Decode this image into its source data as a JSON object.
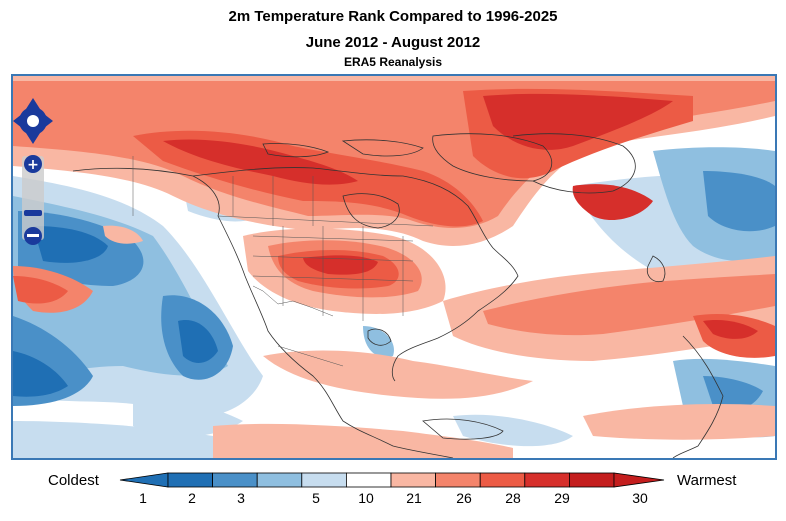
{
  "title": "2m Temperature Rank Compared to 1996-2025",
  "period": "June 2012 - August 2012",
  "source": "ERA5 Reanalysis",
  "map": {
    "region": "North America and adjacent oceans",
    "controls": [
      "pan-up",
      "pan-left",
      "pan-right",
      "pan-down",
      "zoom-in",
      "zoom-out"
    ]
  },
  "legend": {
    "left_label": "Coldest",
    "right_label": "Warmest",
    "ticks": [
      "1",
      "2",
      "3",
      "5",
      "10",
      "21",
      "26",
      "28",
      "29",
      "30"
    ],
    "colors": [
      "#1f6fb4",
      "#4a90c8",
      "#8fbfe0",
      "#c7ddef",
      "#ffffff",
      "#f9b7a3",
      "#f4846b",
      "#ec5b45",
      "#d62f2b",
      "#c41e1e"
    ]
  }
}
